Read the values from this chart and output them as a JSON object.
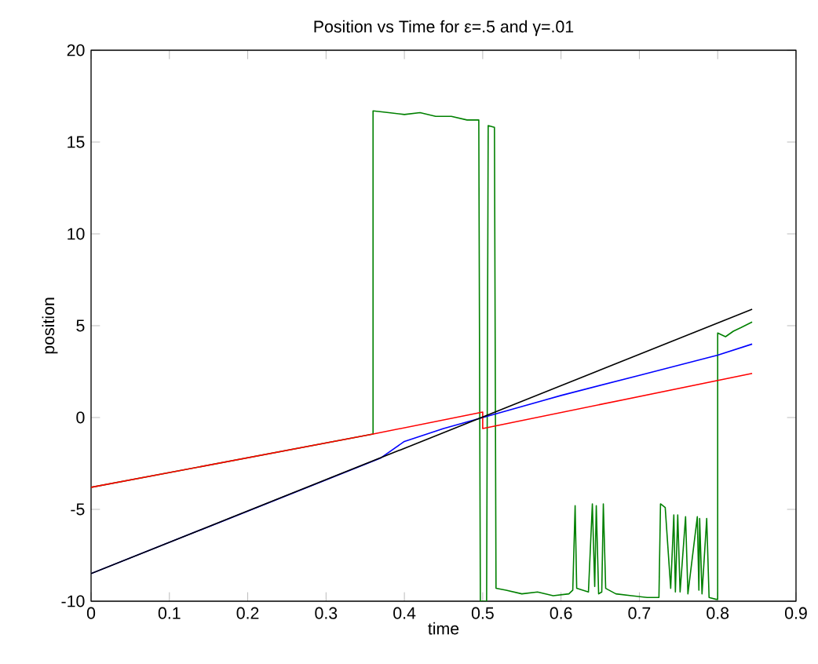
{
  "chart_data": {
    "type": "line",
    "title": "Position vs Time for ε=.5 and γ=.01",
    "xlabel": "time",
    "ylabel": "position",
    "xlim": [
      0,
      0.9
    ],
    "ylim": [
      -10,
      20
    ],
    "xticks": [
      0,
      0.1,
      0.2,
      0.3,
      0.4,
      0.5,
      0.6,
      0.7,
      0.8,
      0.9
    ],
    "yticks": [
      -10,
      -5,
      0,
      5,
      10,
      15,
      20
    ],
    "marker": "none",
    "line_style": "solid",
    "series": [
      {
        "color": "#008000",
        "x": [
          0,
          0.36,
          0.36,
          0.38,
          0.4,
          0.42,
          0.44,
          0.46,
          0.48,
          0.495,
          0.497,
          0.505,
          0.507,
          0.515,
          0.517,
          0.53,
          0.55,
          0.57,
          0.59,
          0.61,
          0.615,
          0.618,
          0.62,
          0.635,
          0.64,
          0.643,
          0.645,
          0.648,
          0.652,
          0.654,
          0.657,
          0.67,
          0.69,
          0.71,
          0.725,
          0.727,
          0.733,
          0.74,
          0.744,
          0.746,
          0.749,
          0.752,
          0.759,
          0.762,
          0.774,
          0.776,
          0.777,
          0.78,
          0.786,
          0.789,
          0.798,
          0.8,
          0.8,
          0.81,
          0.82,
          0.83,
          0.844
        ],
        "values": [
          -3.8,
          -0.9,
          16.7,
          16.6,
          16.5,
          16.6,
          16.4,
          16.4,
          16.2,
          16.2,
          -10,
          -10,
          15.9,
          15.8,
          -9.3,
          -9.4,
          -9.6,
          -9.5,
          -9.7,
          -9.6,
          -9.4,
          -4.8,
          -9.3,
          -9.5,
          -4.7,
          -9.2,
          -4.8,
          -9.6,
          -9.5,
          -4.7,
          -9.3,
          -9.6,
          -9.7,
          -9.8,
          -9.8,
          -4.7,
          -4.9,
          -9.3,
          -5.3,
          -9.5,
          -5.3,
          -9.5,
          -5.4,
          -9.6,
          -5.4,
          -9.4,
          -5.5,
          -9.6,
          -5.5,
          -9.8,
          -9.9,
          -9.9,
          4.6,
          4.4,
          4.7,
          4.9,
          5.2
        ]
      },
      {
        "color": "#0000ff",
        "x": [
          0,
          0.37,
          0.4,
          0.45,
          0.5,
          0.6,
          0.7,
          0.8,
          0.844
        ],
        "values": [
          -8.5,
          -2.2,
          -1.3,
          -0.6,
          0.0,
          1.2,
          2.3,
          3.4,
          4.0
        ]
      },
      {
        "color": "#ff0000",
        "x": [
          0,
          0.36,
          0.5,
          0.5,
          0.844
        ],
        "values": [
          -3.8,
          -0.9,
          0.3,
          -0.6,
          2.4
        ]
      },
      {
        "color": "#000000",
        "x": [
          0,
          0.844
        ],
        "values": [
          -8.5,
          5.9
        ]
      }
    ]
  }
}
